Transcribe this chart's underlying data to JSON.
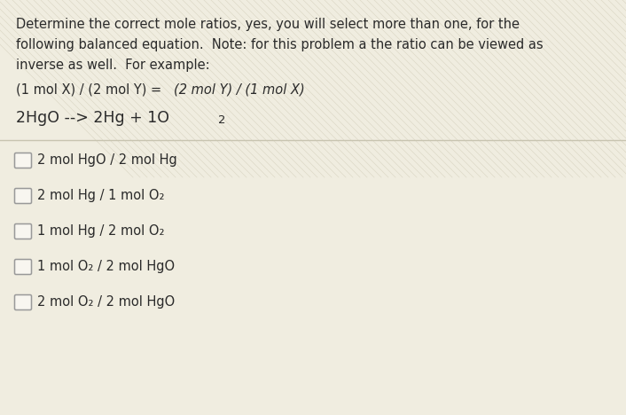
{
  "background_color": "#dbd6c0",
  "panel_color": "#f0ede0",
  "title_line1": "Determine the correct mole ratios, yes, you will select more than one, for the",
  "title_line2": "following balanced equation.  Note: for this problem a the ratio can be viewed as",
  "title_line3": "inverse as well.  For example:",
  "example_normal": "(1 mol X) / (2 mol Y) = ",
  "example_italic": "(2 mol Y) / (1 mol X)",
  "equation_main": "2HgO --> 2Hg + 1O",
  "equation_sub": "2",
  "choices": [
    "2 mol HgO / 2 mol Hg",
    "2 mol Hg / 1 mol O₂",
    "1 mol Hg / 2 mol O₂",
    "1 mol O₂ / 2 mol HgO",
    "2 mol O₂ / 2 mol HgO"
  ],
  "text_color": "#2a2a2a",
  "checkbox_color": "#f8f6f0",
  "checkbox_edge_color": "#999999",
  "divider_color": "#c8c4b0",
  "font_size_body": 10.5,
  "font_size_equation": 12.5,
  "font_size_choices": 10.5
}
